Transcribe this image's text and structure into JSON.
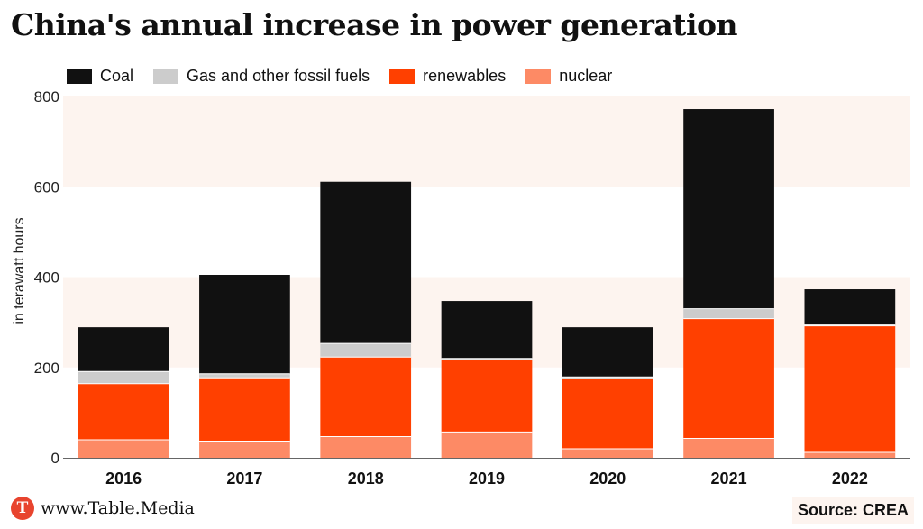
{
  "header": {
    "title": "China's annual increase in power generation"
  },
  "footer": {
    "logo_letter": "T",
    "site": "www.Table.Media",
    "source": "Source: CREA"
  },
  "colors": {
    "band": "#fdf4ef",
    "gridline": "#ffffff",
    "axis": "#666666"
  },
  "chart_data": {
    "type": "bar",
    "stacked": true,
    "title": "China's annual increase in power generation",
    "ylabel": "in terawatt hours",
    "xlabel": "",
    "ylim": [
      0,
      800
    ],
    "yticks": [
      0,
      200,
      400,
      600,
      800
    ],
    "legend_position": "top-left",
    "categories": [
      "2016",
      "2017",
      "2018",
      "2019",
      "2020",
      "2021",
      "2022"
    ],
    "series": [
      {
        "name": "nuclear",
        "color": "#fd8a65",
        "values": [
          40,
          37,
          47,
          57,
          20,
          43,
          12
        ]
      },
      {
        "name": "renewables",
        "color": "#ff4000",
        "values": [
          124,
          140,
          176,
          160,
          155,
          265,
          280
        ]
      },
      {
        "name": "Gas and other fossil fuels",
        "color": "#cccccc",
        "values": [
          27,
          9,
          30,
          3,
          4,
          22,
          2
        ]
      },
      {
        "name": "Coal",
        "color": "#111111",
        "values": [
          98,
          219,
          358,
          127,
          110,
          442,
          79
        ]
      }
    ],
    "legend_order": [
      "Coal",
      "Gas and other fossil fuels",
      "renewables",
      "nuclear"
    ]
  }
}
